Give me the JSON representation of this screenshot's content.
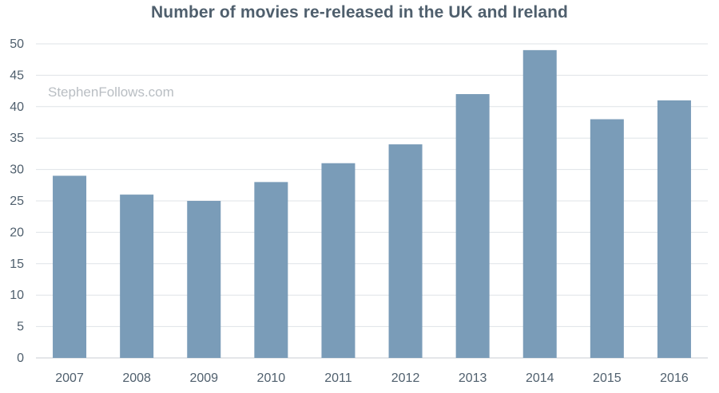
{
  "chart_data": {
    "type": "bar",
    "title": "Number of movies re-released in the UK and Ireland",
    "watermark": "StephenFollows.com",
    "categories": [
      "2007",
      "2008",
      "2009",
      "2010",
      "2011",
      "2012",
      "2013",
      "2014",
      "2015",
      "2016"
    ],
    "values": [
      29,
      26,
      25,
      28,
      31,
      34,
      42,
      49,
      38,
      41
    ],
    "xlabel": "",
    "ylabel": "",
    "ylim": [
      0,
      50
    ],
    "yticks": [
      0,
      5,
      10,
      15,
      20,
      25,
      30,
      35,
      40,
      45,
      50
    ],
    "grid": true,
    "legend": "none",
    "colors": {
      "bar": "#7a9cb8",
      "grid": "#dfe3e7",
      "axis": "#c9ced3",
      "text": "#4f5f6d",
      "title": "#4f5f6d",
      "watermark": "#b9bec3"
    }
  }
}
